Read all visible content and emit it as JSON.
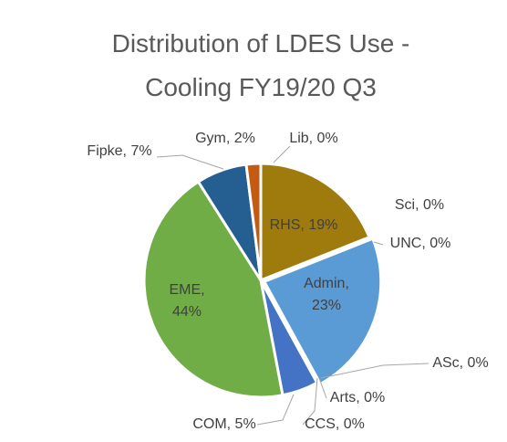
{
  "chart_data": {
    "type": "pie",
    "title": "Distribution of LDES Use -\nCooling FY19/20 Q3",
    "categories": [
      "Lib",
      "RHS",
      "Sci",
      "UNC",
      "Admin",
      "ASc",
      "Arts",
      "CCS",
      "COM",
      "EME",
      "Fipke",
      "Gym"
    ],
    "values": [
      0,
      19,
      0,
      0,
      23,
      0,
      0,
      0,
      5,
      44,
      7,
      2
    ],
    "value_labels": [
      "Lib, 0%",
      "RHS, 19%",
      "Sci, 0%",
      "UNC, 0%",
      "Admin,\n23%",
      "ASc, 0%",
      "Arts, 0%",
      "CCS, 0%",
      "COM, 5%",
      "EME,\n44%",
      "Fipke, 7%",
      "Gym, 2%"
    ],
    "colors": [
      "#a5a5a5",
      "#9e7b0c",
      "#ffc000",
      "#5b9bd5",
      "#5b9bd5",
      "#70ad47",
      "#264478",
      "#9e480e",
      "#4472c4",
      "#70ad47",
      "#255e91",
      "#c55a11"
    ]
  }
}
